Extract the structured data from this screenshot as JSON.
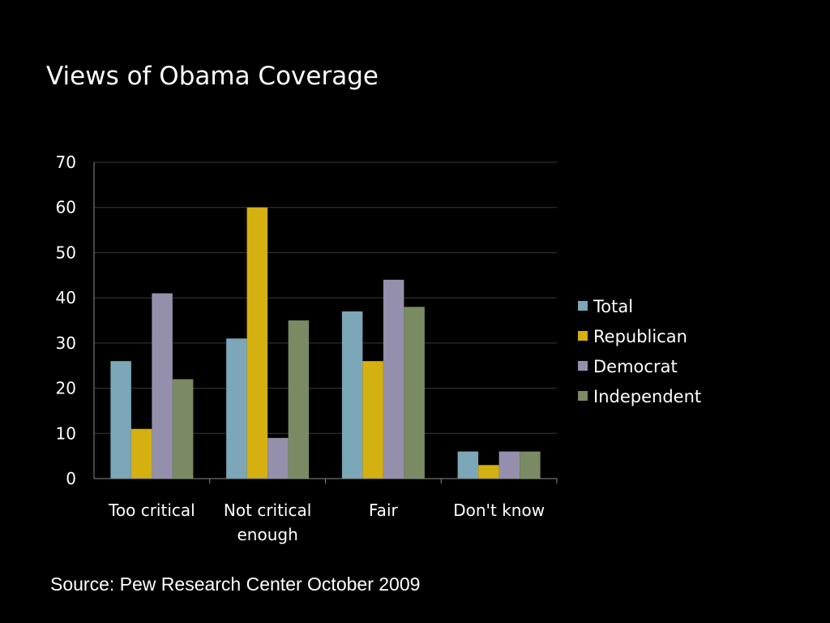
{
  "slide": {
    "title": "Views of Obama Coverage",
    "source": "Source: Pew Research Center October 2009"
  },
  "chart_data": {
    "type": "bar",
    "title": "",
    "xlabel": "",
    "ylabel": "",
    "categories": [
      [
        "Too critical"
      ],
      [
        "Not critical",
        "enough"
      ],
      [
        "Fair"
      ],
      [
        "Don't know"
      ]
    ],
    "series": [
      {
        "name": "Total",
        "values": [
          26,
          31,
          37,
          6
        ],
        "color": "#7ba7b8"
      },
      {
        "name": "Republican",
        "values": [
          11,
          60,
          26,
          3
        ],
        "color": "#d4b010"
      },
      {
        "name": "Democrat",
        "values": [
          41,
          9,
          44,
          6
        ],
        "color": "#9490ac"
      },
      {
        "name": "Independent",
        "values": [
          22,
          35,
          38,
          6
        ],
        "color": "#7a8a62"
      }
    ],
    "ylim": [
      0,
      70
    ],
    "yticks": [
      0,
      10,
      20,
      30,
      40,
      50,
      60,
      70
    ],
    "grid": true,
    "legend": "right",
    "colors": {
      "background": "#000000",
      "text": "#ffffff",
      "gridline": "#3a3a3a",
      "axis": "#8a8a8a"
    }
  }
}
